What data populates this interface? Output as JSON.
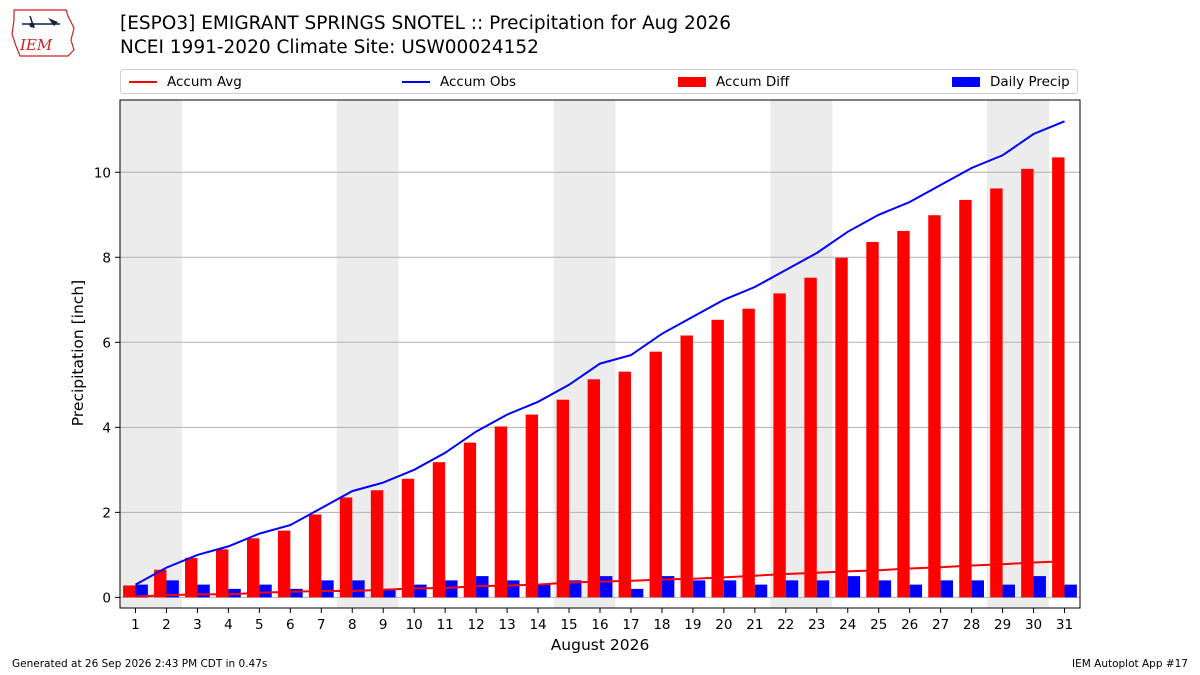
{
  "header": {
    "logo_text": "IEM",
    "title_line1": "[ESPO3] EMIGRANT SPRINGS SNOTEL :: Precipitation for Aug 2026",
    "title_line2": "NCEI 1991-2020 Climate Site: USW00024152"
  },
  "legend": {
    "items": [
      {
        "label": "Accum Avg",
        "kind": "line",
        "color": "#ff0000"
      },
      {
        "label": "Accum Obs",
        "kind": "line",
        "color": "#0000ff"
      },
      {
        "label": "Accum Diff",
        "kind": "box",
        "color": "#ff0000"
      },
      {
        "label": "Daily Precip",
        "kind": "box",
        "color": "#0000ff"
      }
    ]
  },
  "chart_data": {
    "type": "bar",
    "xlabel": "August 2026",
    "ylabel": "Precipitation [inch]",
    "ylim": [
      -0.25,
      11.7
    ],
    "yticks": [
      0,
      2,
      4,
      6,
      8,
      10
    ],
    "grid": "horizontal",
    "weekend_shading_days": [
      [
        1,
        2
      ],
      [
        8,
        9
      ],
      [
        15,
        16
      ],
      [
        22,
        23
      ],
      [
        29,
        30
      ]
    ],
    "categories": [
      1,
      2,
      3,
      4,
      5,
      6,
      7,
      8,
      9,
      10,
      11,
      12,
      13,
      14,
      15,
      16,
      17,
      18,
      19,
      20,
      21,
      22,
      23,
      24,
      25,
      26,
      27,
      28,
      29,
      30,
      31
    ],
    "series": [
      {
        "name": "Accum Diff",
        "kind": "bar",
        "color": "#ff0000",
        "values": [
          0.28,
          0.65,
          0.93,
          1.13,
          1.39,
          1.57,
          1.95,
          2.35,
          2.52,
          2.79,
          3.18,
          3.64,
          4.02,
          4.3,
          4.65,
          5.13,
          5.31,
          5.78,
          6.16,
          6.53,
          6.79,
          7.15,
          7.52,
          7.99,
          8.36,
          8.62,
          8.99,
          9.35,
          9.62,
          10.08,
          10.35
        ]
      },
      {
        "name": "Daily Precip",
        "kind": "bar",
        "color": "#0000ff",
        "values": [
          0.3,
          0.4,
          0.3,
          0.2,
          0.3,
          0.2,
          0.4,
          0.4,
          0.2,
          0.3,
          0.4,
          0.5,
          0.4,
          0.3,
          0.4,
          0.5,
          0.2,
          0.5,
          0.4,
          0.4,
          0.3,
          0.4,
          0.4,
          0.5,
          0.4,
          0.3,
          0.4,
          0.4,
          0.3,
          0.5,
          0.3
        ]
      },
      {
        "name": "Accum Obs",
        "kind": "line",
        "color": "#0000ff",
        "values": [
          0.3,
          0.7,
          1.0,
          1.2,
          1.5,
          1.7,
          2.1,
          2.5,
          2.7,
          3.0,
          3.4,
          3.9,
          4.3,
          4.6,
          5.0,
          5.5,
          5.7,
          6.2,
          6.6,
          7.0,
          7.3,
          7.7,
          8.1,
          8.6,
          9.0,
          9.3,
          9.7,
          10.1,
          10.4,
          10.9,
          11.2
        ]
      },
      {
        "name": "Accum Avg",
        "kind": "line",
        "color": "#ff0000",
        "values": [
          0.02,
          0.05,
          0.07,
          0.07,
          0.11,
          0.13,
          0.15,
          0.15,
          0.18,
          0.21,
          0.22,
          0.26,
          0.28,
          0.3,
          0.35,
          0.37,
          0.39,
          0.42,
          0.44,
          0.47,
          0.51,
          0.55,
          0.58,
          0.61,
          0.64,
          0.68,
          0.71,
          0.75,
          0.78,
          0.82,
          0.85
        ]
      }
    ]
  },
  "footer": {
    "generated": "Generated at 26 Sep 2026 2:43 PM CDT in 0.47s",
    "app": "IEM Autoplot App #17"
  }
}
